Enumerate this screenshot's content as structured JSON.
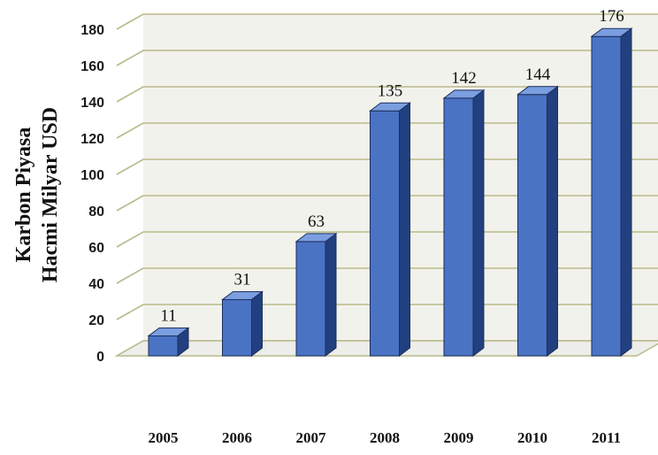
{
  "chart_data": {
    "type": "bar",
    "style": "3d-column",
    "title": "",
    "xlabel": "",
    "ylabel_lines": [
      "Karbon Piyasa",
      "Hacmi Milyar USD"
    ],
    "categories": [
      "2005",
      "2006",
      "2007",
      "2008",
      "2009",
      "2010",
      "2011"
    ],
    "values": [
      11,
      31,
      63,
      135,
      142,
      144,
      176
    ],
    "data_labels": [
      "11",
      "31",
      "63",
      "135",
      "142",
      "144",
      "176"
    ],
    "ylim": [
      0,
      180
    ],
    "yticks": [
      0,
      20,
      40,
      60,
      80,
      100,
      120,
      140,
      160,
      180
    ],
    "ytick_labels": [
      "0",
      "20",
      "40",
      "60",
      "80",
      "100",
      "120",
      "140",
      "160",
      "180"
    ],
    "grid": true,
    "legend": "none",
    "colors": {
      "bar_front": "#4a73c4",
      "bar_side": "#22407f",
      "bar_top": "#7b9ee0",
      "bar_outline": "#1c2f5c",
      "gridline": "#b9b98a",
      "wall": "#f2f2ec"
    }
  }
}
